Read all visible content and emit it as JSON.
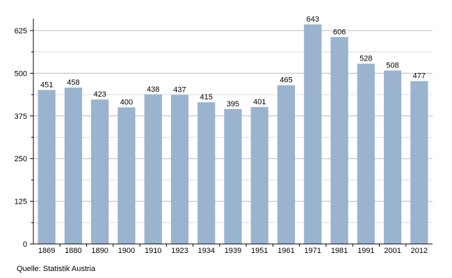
{
  "chart_data": {
    "type": "bar",
    "categories": [
      "1869",
      "1880",
      "1890",
      "1900",
      "1910",
      "1923",
      "1934",
      "1939",
      "1951",
      "1961",
      "1971",
      "1981",
      "1991",
      "2001",
      "2012"
    ],
    "values": [
      451,
      458,
      423,
      400,
      438,
      437,
      415,
      395,
      401,
      465,
      643,
      606,
      528,
      508,
      477
    ],
    "title": "",
    "xlabel": "",
    "ylabel": "",
    "ylim": [
      0,
      625
    ],
    "yticks": [
      0,
      125,
      250,
      375,
      500,
      625
    ],
    "grid": true,
    "bar_color": "#9ab3cf"
  },
  "source": "Quelle: Statistik Austria"
}
